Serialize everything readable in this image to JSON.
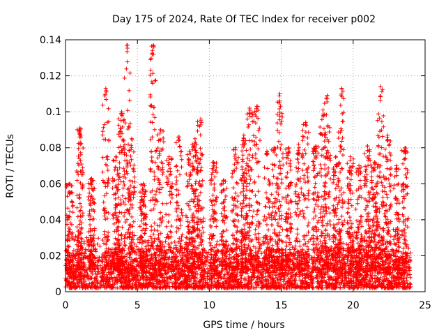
{
  "chart_data": {
    "type": "scatter",
    "title": "Day 175 of 2024, Rate Of TEC Index for receiver p002",
    "xlabel": "GPS time / hours",
    "ylabel": "ROTI / TECUs",
    "xlim": [
      0,
      25
    ],
    "ylim": [
      0,
      0.14
    ],
    "xticks": [
      0,
      5,
      10,
      15,
      20,
      25
    ],
    "yticks": [
      0,
      0.02,
      0.04,
      0.06,
      0.08,
      0.1,
      0.12,
      0.14
    ],
    "xtick_labels": [
      "0",
      "5",
      "10",
      "15",
      "20",
      "25"
    ],
    "ytick_labels": [
      "0",
      "0.02",
      "0.04",
      "0.06",
      "0.08",
      "0.1",
      "0.12",
      "0.14"
    ],
    "grid": true,
    "marker": "+",
    "marker_color": "#ff0000",
    "data_x_range": [
      0,
      24
    ],
    "base_level": 0.012,
    "peaks": [
      {
        "x": 0.3,
        "y": 0.06
      },
      {
        "x": 1.0,
        "y": 0.091
      },
      {
        "x": 1.8,
        "y": 0.063
      },
      {
        "x": 2.8,
        "y": 0.113
      },
      {
        "x": 3.5,
        "y": 0.075
      },
      {
        "x": 3.9,
        "y": 0.1
      },
      {
        "x": 4.3,
        "y": 0.137
      },
      {
        "x": 4.6,
        "y": 0.085
      },
      {
        "x": 5.4,
        "y": 0.06
      },
      {
        "x": 6.1,
        "y": 0.137
      },
      {
        "x": 6.6,
        "y": 0.09
      },
      {
        "x": 7.2,
        "y": 0.075
      },
      {
        "x": 7.9,
        "y": 0.086
      },
      {
        "x": 8.6,
        "y": 0.078
      },
      {
        "x": 9.0,
        "y": 0.085
      },
      {
        "x": 9.4,
        "y": 0.096
      },
      {
        "x": 10.3,
        "y": 0.072
      },
      {
        "x": 11.0,
        "y": 0.062
      },
      {
        "x": 11.8,
        "y": 0.08
      },
      {
        "x": 12.4,
        "y": 0.087
      },
      {
        "x": 12.8,
        "y": 0.102
      },
      {
        "x": 13.3,
        "y": 0.103
      },
      {
        "x": 14.0,
        "y": 0.078
      },
      {
        "x": 14.5,
        "y": 0.08
      },
      {
        "x": 14.9,
        "y": 0.11
      },
      {
        "x": 15.5,
        "y": 0.08
      },
      {
        "x": 16.2,
        "y": 0.082
      },
      {
        "x": 16.7,
        "y": 0.094
      },
      {
        "x": 17.4,
        "y": 0.081
      },
      {
        "x": 17.9,
        "y": 0.101
      },
      {
        "x": 18.2,
        "y": 0.109
      },
      {
        "x": 18.8,
        "y": 0.075
      },
      {
        "x": 19.2,
        "y": 0.113
      },
      {
        "x": 19.8,
        "y": 0.075
      },
      {
        "x": 20.4,
        "y": 0.07
      },
      {
        "x": 21.0,
        "y": 0.081
      },
      {
        "x": 21.5,
        "y": 0.072
      },
      {
        "x": 21.9,
        "y": 0.114
      },
      {
        "x": 22.4,
        "y": 0.087
      },
      {
        "x": 23.0,
        "y": 0.07
      },
      {
        "x": 23.6,
        "y": 0.08
      }
    ]
  }
}
